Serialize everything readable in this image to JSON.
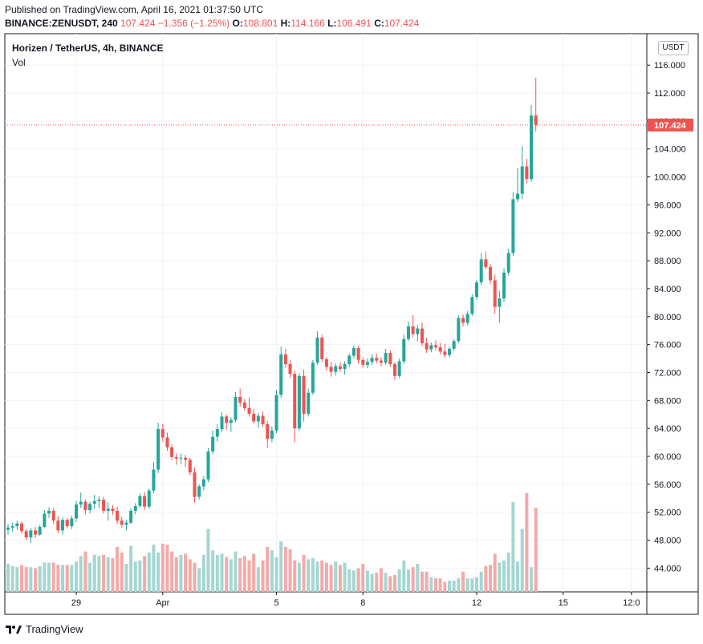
{
  "header": {
    "published": "Published on TradingView.com, April 16, 2021 01:37:50 UTC",
    "symbol": "BINANCE:ZENUSDT, 240",
    "last": "107.424",
    "change": "−1.356 (−1.25%)",
    "open_label": "O:",
    "open": "108.801",
    "high_label": "H:",
    "high": "114.166",
    "low_label": "L:",
    "low": "106.491",
    "close_label": "C:",
    "close": "107.424"
  },
  "legend": {
    "title": "Horizen / TetherUS, 4h, BINANCE",
    "volume": "Vol"
  },
  "currency_button": "USDT",
  "footer": {
    "brand": "TradingView"
  },
  "colors": {
    "up": "#26a69a",
    "down": "#ef5350",
    "up_vol": "#a5d6d1",
    "down_vol": "#f4aaa8"
  },
  "chart_data": {
    "type": "candlestick",
    "x_tick_labels": [
      "29",
      "Apr",
      "5",
      "8",
      "12",
      "15",
      "12:0"
    ],
    "y_tick_labels": [
      "44.000",
      "48.000",
      "52.000",
      "56.000",
      "60.000",
      "64.000",
      "68.000",
      "72.000",
      "76.000",
      "80.000",
      "84.000",
      "88.000",
      "92.000",
      "96.000",
      "100.000",
      "104.000",
      "108.000",
      "112.000",
      "116.000"
    ],
    "ylim": [
      40.6,
      120.5
    ],
    "last_price_label": "107.424",
    "last_price": 107.424,
    "candles": [
      [
        49.5,
        50.3,
        48.8,
        49.8
      ],
      [
        49.8,
        50.5,
        49.2,
        50.0
      ],
      [
        50.0,
        50.8,
        49.5,
        50.4
      ],
      [
        50.4,
        50.7,
        48.9,
        49.3
      ],
      [
        49.3,
        49.6,
        48.0,
        48.4
      ],
      [
        48.4,
        49.8,
        47.6,
        49.4
      ],
      [
        49.4,
        49.9,
        48.3,
        48.8
      ],
      [
        48.8,
        50.2,
        48.6,
        49.9
      ],
      [
        49.9,
        52.3,
        49.7,
        51.8
      ],
      [
        51.8,
        52.7,
        51.2,
        52.2
      ],
      [
        52.2,
        52.6,
        50.3,
        50.8
      ],
      [
        50.8,
        51.4,
        49.0,
        49.4
      ],
      [
        49.4,
        51.3,
        48.8,
        50.9
      ],
      [
        50.9,
        51.2,
        49.7,
        50.0
      ],
      [
        50.0,
        51.5,
        49.6,
        51.1
      ],
      [
        51.1,
        53.6,
        50.6,
        53.1
      ],
      [
        53.1,
        54.8,
        52.6,
        53.5
      ],
      [
        53.5,
        53.8,
        51.7,
        52.3
      ],
      [
        52.3,
        53.5,
        51.8,
        53.2
      ],
      [
        53.2,
        54.5,
        52.5,
        53.6
      ],
      [
        53.6,
        54.3,
        52.6,
        53.8
      ],
      [
        53.8,
        54.2,
        51.8,
        52.2
      ],
      [
        52.2,
        53.4,
        50.8,
        52.5
      ],
      [
        52.5,
        53.0,
        51.6,
        52.2
      ],
      [
        52.2,
        52.8,
        50.3,
        50.8
      ],
      [
        50.8,
        51.3,
        49.8,
        50.2
      ],
      [
        50.2,
        50.9,
        49.4,
        50.5
      ],
      [
        50.5,
        52.6,
        50.3,
        52.2
      ],
      [
        52.2,
        53.3,
        51.7,
        52.9
      ],
      [
        52.9,
        54.7,
        52.6,
        54.3
      ],
      [
        54.3,
        54.9,
        52.3,
        52.8
      ],
      [
        52.8,
        55.4,
        52.5,
        55.1
      ],
      [
        55.1,
        59.2,
        54.7,
        58.1
      ],
      [
        58.1,
        64.8,
        57.6,
        63.9
      ],
      [
        63.9,
        64.6,
        62.1,
        62.7
      ],
      [
        62.7,
        63.4,
        60.8,
        61.3
      ],
      [
        61.3,
        61.7,
        59.5,
        59.9
      ],
      [
        59.9,
        60.4,
        58.8,
        59.7
      ],
      [
        59.7,
        60.4,
        58.9,
        59.8
      ],
      [
        59.8,
        60.2,
        58.5,
        59.5
      ],
      [
        59.5,
        59.8,
        57.3,
        57.7
      ],
      [
        57.7,
        58.4,
        53.4,
        54.2
      ],
      [
        54.2,
        56.0,
        53.8,
        55.7
      ],
      [
        55.7,
        57.2,
        55.1,
        56.7
      ],
      [
        56.7,
        61.2,
        56.3,
        60.7
      ],
      [
        60.7,
        63.7,
        60.3,
        62.8
      ],
      [
        62.8,
        64.6,
        62.1,
        63.9
      ],
      [
        63.9,
        66.3,
        63.5,
        65.7
      ],
      [
        65.7,
        66.0,
        63.8,
        64.8
      ],
      [
        64.8,
        65.6,
        63.5,
        65.2
      ],
      [
        65.2,
        69.2,
        64.9,
        68.5
      ],
      [
        68.5,
        69.7,
        67.1,
        67.7
      ],
      [
        67.7,
        68.2,
        66.5,
        66.9
      ],
      [
        66.9,
        68.4,
        65.7,
        66.1
      ],
      [
        66.1,
        66.8,
        64.7,
        65.0
      ],
      [
        65.0,
        66.2,
        64.1,
        65.8
      ],
      [
        65.8,
        66.4,
        64.2,
        64.6
      ],
      [
        64.6,
        65.1,
        61.2,
        62.5
      ],
      [
        62.5,
        64.3,
        62.0,
        63.7
      ],
      [
        63.7,
        69.5,
        63.3,
        68.8
      ],
      [
        68.8,
        75.7,
        68.4,
        74.6
      ],
      [
        74.6,
        75.4,
        72.7,
        73.2
      ],
      [
        73.2,
        73.8,
        71.2,
        71.8
      ],
      [
        71.8,
        72.2,
        62.0,
        64.0
      ],
      [
        64.0,
        71.9,
        63.6,
        71.5
      ],
      [
        71.5,
        72.4,
        65.0,
        66.1
      ],
      [
        66.1,
        69.7,
        65.7,
        69.1
      ],
      [
        69.1,
        73.8,
        68.8,
        73.4
      ],
      [
        73.4,
        77.9,
        73.1,
        77.0
      ],
      [
        77.0,
        77.4,
        73.5,
        73.9
      ],
      [
        73.9,
        74.2,
        72.3,
        72.8
      ],
      [
        72.8,
        73.5,
        71.4,
        72.1
      ],
      [
        72.1,
        73.3,
        71.6,
        72.9
      ],
      [
        72.9,
        73.4,
        72.1,
        72.5
      ],
      [
        72.5,
        73.6,
        71.7,
        73.2
      ],
      [
        73.2,
        74.7,
        72.8,
        74.4
      ],
      [
        74.4,
        75.9,
        74.0,
        75.5
      ],
      [
        75.5,
        75.8,
        73.3,
        73.8
      ],
      [
        73.8,
        74.2,
        72.7,
        73.1
      ],
      [
        73.1,
        74.0,
        72.6,
        73.5
      ],
      [
        73.5,
        74.6,
        73.1,
        74.1
      ],
      [
        74.1,
        74.7,
        73.3,
        73.7
      ],
      [
        73.7,
        74.2,
        72.9,
        73.4
      ],
      [
        73.4,
        75.4,
        73.1,
        74.8
      ],
      [
        74.8,
        75.2,
        72.8,
        73.2
      ],
      [
        73.2,
        73.5,
        70.9,
        71.5
      ],
      [
        71.5,
        74.0,
        71.2,
        73.6
      ],
      [
        73.6,
        77.4,
        73.2,
        76.8
      ],
      [
        76.8,
        79.3,
        76.5,
        78.6
      ],
      [
        78.6,
        80.2,
        77.1,
        77.5
      ],
      [
        77.5,
        78.8,
        76.4,
        78.3
      ],
      [
        78.3,
        79.2,
        75.8,
        76.2
      ],
      [
        76.2,
        77.0,
        74.8,
        75.3
      ],
      [
        75.3,
        76.3,
        74.9,
        75.9
      ],
      [
        75.9,
        76.6,
        75.2,
        75.6
      ],
      [
        75.6,
        76.2,
        74.6,
        75.0
      ],
      [
        75.0,
        76.1,
        74.1,
        74.5
      ],
      [
        74.5,
        75.7,
        74.2,
        75.4
      ],
      [
        75.4,
        76.8,
        75.1,
        76.5
      ],
      [
        76.5,
        80.2,
        76.2,
        79.8
      ],
      [
        79.8,
        80.3,
        78.6,
        79.1
      ],
      [
        79.1,
        80.8,
        78.7,
        80.4
      ],
      [
        80.4,
        83.2,
        80.1,
        82.8
      ],
      [
        82.8,
        85.3,
        82.4,
        84.9
      ],
      [
        84.9,
        89.1,
        84.5,
        88.2
      ],
      [
        88.2,
        89.3,
        86.8,
        87.1
      ],
      [
        87.1,
        87.5,
        84.7,
        85.2
      ],
      [
        85.2,
        86.0,
        80.4,
        81.4
      ],
      [
        81.4,
        83.7,
        79.1,
        82.6
      ],
      [
        82.6,
        86.9,
        82.1,
        86.3
      ],
      [
        86.3,
        89.7,
        85.9,
        89.1
      ],
      [
        89.1,
        97.8,
        88.7,
        96.8
      ],
      [
        96.8,
        101.3,
        96.4,
        97.6
      ],
      [
        97.6,
        104.4,
        96.8,
        101.5
      ],
      [
        101.5,
        102.6,
        99.1,
        99.7
      ],
      [
        99.7,
        110.3,
        99.3,
        108.8
      ],
      [
        108.8,
        114.2,
        106.5,
        107.4
      ]
    ],
    "volumes": [
      25,
      23,
      22,
      24,
      22,
      22,
      21,
      23,
      26,
      26,
      26,
      24,
      24,
      24,
      24,
      27,
      32,
      36,
      26,
      33,
      32,
      33,
      31,
      30,
      40,
      35,
      25,
      41,
      27,
      28,
      32,
      35,
      42,
      35,
      43,
      42,
      36,
      31,
      33,
      34,
      29,
      26,
      21,
      33,
      56,
      37,
      33,
      34,
      31,
      29,
      36,
      30,
      32,
      28,
      34,
      22,
      28,
      40,
      37,
      31,
      45,
      40,
      38,
      28,
      26,
      33,
      29,
      30,
      27,
      28,
      26,
      24,
      27,
      24,
      26,
      20,
      19,
      21,
      25,
      19,
      16,
      17,
      21,
      17,
      14,
      15,
      20,
      28,
      20,
      22,
      25,
      18,
      18,
      13,
      12,
      12,
      9,
      10,
      10,
      12,
      18,
      12,
      12,
      13,
      18,
      23,
      24,
      34,
      26,
      28,
      35,
      80,
      27,
      56,
      88,
      22,
      75
    ]
  }
}
